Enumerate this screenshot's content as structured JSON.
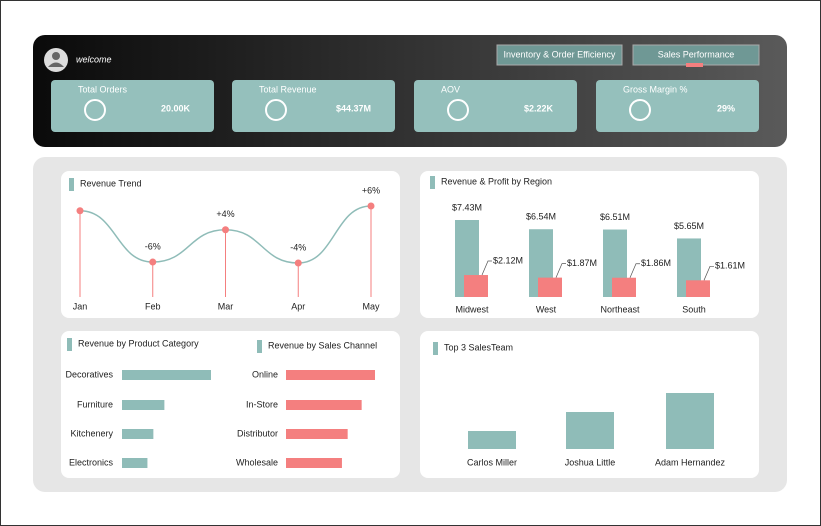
{
  "header": {
    "greeting": "welcome",
    "tabs": [
      "Inventory & Order Efficiency",
      "Sales Performance"
    ]
  },
  "kpis": [
    {
      "label": "Total Orders",
      "value": "20.00K"
    },
    {
      "label": "Total Revenue",
      "value": "$44.37M"
    },
    {
      "label": "AOV",
      "value": "$2.22K"
    },
    {
      "label": "Gross Margin %",
      "value": "29%"
    }
  ],
  "chart_data": [
    {
      "type": "line",
      "title": "Revenue Trend",
      "categories": [
        "Jan",
        "Feb",
        "Mar",
        "Apr",
        "May"
      ],
      "values": [
        9.05,
        8.51,
        8.85,
        8.5,
        9.1
      ],
      "change_labels": [
        null,
        "-6%",
        "+4%",
        "-4%",
        "+6%"
      ],
      "color": "#8fbcb8",
      "marker_color": "#f47f7f"
    },
    {
      "type": "grouped-bar",
      "title": "Revenue & Profit by Region",
      "categories": [
        "Midwest",
        "West",
        "Northeast",
        "South"
      ],
      "series": [
        {
          "color": "#8fbcb8",
          "values": [
            7.43,
            6.54,
            6.51,
            5.65
          ],
          "value_labels": [
            "$7.43M",
            "$6.54M",
            "$6.51M",
            "$5.65M"
          ]
        },
        {
          "color": "#f47f7f",
          "values": [
            2.12,
            1.87,
            1.86,
            1.61
          ],
          "value_labels": [
            "$2.12M",
            "$1.87M",
            "$1.86M",
            "$1.61M"
          ]
        }
      ]
    },
    {
      "type": "hbar",
      "title": "Revenue by Product Category",
      "categories": [
        "Decoratives",
        "Furniture",
        "Kitchenery",
        "Electronics"
      ],
      "values": [
        21.0,
        10.0,
        7.4,
        6.0
      ],
      "color": "#8fbcb8"
    },
    {
      "type": "hbar",
      "title": "Revenue by  Sales Channel",
      "categories": [
        "Online",
        "In-Store",
        "Distributor",
        "Wholesale"
      ],
      "values": [
        14.0,
        11.9,
        9.7,
        8.8
      ],
      "color": "#f47f7f"
    },
    {
      "type": "bar",
      "title": "Top 3 SalesTeam",
      "categories": [
        "Carlos Miller",
        "Joshua Little",
        "Adam Hernandez"
      ],
      "values": [
        1.8,
        3.7,
        5.6
      ],
      "color": "#8fbcb8"
    }
  ]
}
